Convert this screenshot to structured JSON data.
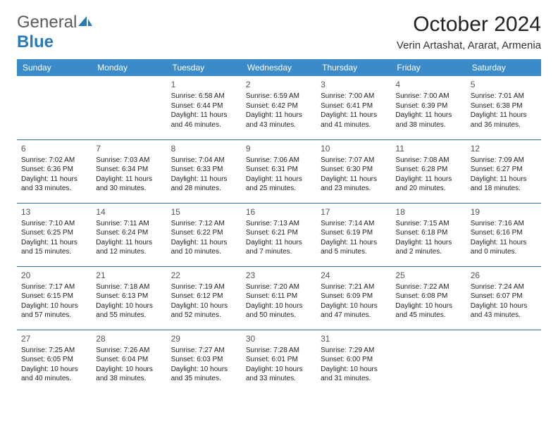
{
  "logo": {
    "text1": "General",
    "text2": "Blue"
  },
  "title": "October 2024",
  "location": "Verin Artashat, Ararat, Armenia",
  "colors": {
    "header_bg": "#3b8bc9",
    "header_text": "#ffffff",
    "row_border": "#3b6fa3",
    "logo_gray": "#5a5a5a",
    "logo_blue": "#2a7ab9"
  },
  "daynames": [
    "Sunday",
    "Monday",
    "Tuesday",
    "Wednesday",
    "Thursday",
    "Friday",
    "Saturday"
  ],
  "weeks": [
    [
      null,
      null,
      {
        "n": "1",
        "sr": "Sunrise: 6:58 AM",
        "ss": "Sunset: 6:44 PM",
        "d1": "Daylight: 11 hours",
        "d2": "and 46 minutes."
      },
      {
        "n": "2",
        "sr": "Sunrise: 6:59 AM",
        "ss": "Sunset: 6:42 PM",
        "d1": "Daylight: 11 hours",
        "d2": "and 43 minutes."
      },
      {
        "n": "3",
        "sr": "Sunrise: 7:00 AM",
        "ss": "Sunset: 6:41 PM",
        "d1": "Daylight: 11 hours",
        "d2": "and 41 minutes."
      },
      {
        "n": "4",
        "sr": "Sunrise: 7:00 AM",
        "ss": "Sunset: 6:39 PM",
        "d1": "Daylight: 11 hours",
        "d2": "and 38 minutes."
      },
      {
        "n": "5",
        "sr": "Sunrise: 7:01 AM",
        "ss": "Sunset: 6:38 PM",
        "d1": "Daylight: 11 hours",
        "d2": "and 36 minutes."
      }
    ],
    [
      {
        "n": "6",
        "sr": "Sunrise: 7:02 AM",
        "ss": "Sunset: 6:36 PM",
        "d1": "Daylight: 11 hours",
        "d2": "and 33 minutes."
      },
      {
        "n": "7",
        "sr": "Sunrise: 7:03 AM",
        "ss": "Sunset: 6:34 PM",
        "d1": "Daylight: 11 hours",
        "d2": "and 30 minutes."
      },
      {
        "n": "8",
        "sr": "Sunrise: 7:04 AM",
        "ss": "Sunset: 6:33 PM",
        "d1": "Daylight: 11 hours",
        "d2": "and 28 minutes."
      },
      {
        "n": "9",
        "sr": "Sunrise: 7:06 AM",
        "ss": "Sunset: 6:31 PM",
        "d1": "Daylight: 11 hours",
        "d2": "and 25 minutes."
      },
      {
        "n": "10",
        "sr": "Sunrise: 7:07 AM",
        "ss": "Sunset: 6:30 PM",
        "d1": "Daylight: 11 hours",
        "d2": "and 23 minutes."
      },
      {
        "n": "11",
        "sr": "Sunrise: 7:08 AM",
        "ss": "Sunset: 6:28 PM",
        "d1": "Daylight: 11 hours",
        "d2": "and 20 minutes."
      },
      {
        "n": "12",
        "sr": "Sunrise: 7:09 AM",
        "ss": "Sunset: 6:27 PM",
        "d1": "Daylight: 11 hours",
        "d2": "and 18 minutes."
      }
    ],
    [
      {
        "n": "13",
        "sr": "Sunrise: 7:10 AM",
        "ss": "Sunset: 6:25 PM",
        "d1": "Daylight: 11 hours",
        "d2": "and 15 minutes."
      },
      {
        "n": "14",
        "sr": "Sunrise: 7:11 AM",
        "ss": "Sunset: 6:24 PM",
        "d1": "Daylight: 11 hours",
        "d2": "and 12 minutes."
      },
      {
        "n": "15",
        "sr": "Sunrise: 7:12 AM",
        "ss": "Sunset: 6:22 PM",
        "d1": "Daylight: 11 hours",
        "d2": "and 10 minutes."
      },
      {
        "n": "16",
        "sr": "Sunrise: 7:13 AM",
        "ss": "Sunset: 6:21 PM",
        "d1": "Daylight: 11 hours",
        "d2": "and 7 minutes."
      },
      {
        "n": "17",
        "sr": "Sunrise: 7:14 AM",
        "ss": "Sunset: 6:19 PM",
        "d1": "Daylight: 11 hours",
        "d2": "and 5 minutes."
      },
      {
        "n": "18",
        "sr": "Sunrise: 7:15 AM",
        "ss": "Sunset: 6:18 PM",
        "d1": "Daylight: 11 hours",
        "d2": "and 2 minutes."
      },
      {
        "n": "19",
        "sr": "Sunrise: 7:16 AM",
        "ss": "Sunset: 6:16 PM",
        "d1": "Daylight: 11 hours",
        "d2": "and 0 minutes."
      }
    ],
    [
      {
        "n": "20",
        "sr": "Sunrise: 7:17 AM",
        "ss": "Sunset: 6:15 PM",
        "d1": "Daylight: 10 hours",
        "d2": "and 57 minutes."
      },
      {
        "n": "21",
        "sr": "Sunrise: 7:18 AM",
        "ss": "Sunset: 6:13 PM",
        "d1": "Daylight: 10 hours",
        "d2": "and 55 minutes."
      },
      {
        "n": "22",
        "sr": "Sunrise: 7:19 AM",
        "ss": "Sunset: 6:12 PM",
        "d1": "Daylight: 10 hours",
        "d2": "and 52 minutes."
      },
      {
        "n": "23",
        "sr": "Sunrise: 7:20 AM",
        "ss": "Sunset: 6:11 PM",
        "d1": "Daylight: 10 hours",
        "d2": "and 50 minutes."
      },
      {
        "n": "24",
        "sr": "Sunrise: 7:21 AM",
        "ss": "Sunset: 6:09 PM",
        "d1": "Daylight: 10 hours",
        "d2": "and 47 minutes."
      },
      {
        "n": "25",
        "sr": "Sunrise: 7:22 AM",
        "ss": "Sunset: 6:08 PM",
        "d1": "Daylight: 10 hours",
        "d2": "and 45 minutes."
      },
      {
        "n": "26",
        "sr": "Sunrise: 7:24 AM",
        "ss": "Sunset: 6:07 PM",
        "d1": "Daylight: 10 hours",
        "d2": "and 43 minutes."
      }
    ],
    [
      {
        "n": "27",
        "sr": "Sunrise: 7:25 AM",
        "ss": "Sunset: 6:05 PM",
        "d1": "Daylight: 10 hours",
        "d2": "and 40 minutes."
      },
      {
        "n": "28",
        "sr": "Sunrise: 7:26 AM",
        "ss": "Sunset: 6:04 PM",
        "d1": "Daylight: 10 hours",
        "d2": "and 38 minutes."
      },
      {
        "n": "29",
        "sr": "Sunrise: 7:27 AM",
        "ss": "Sunset: 6:03 PM",
        "d1": "Daylight: 10 hours",
        "d2": "and 35 minutes."
      },
      {
        "n": "30",
        "sr": "Sunrise: 7:28 AM",
        "ss": "Sunset: 6:01 PM",
        "d1": "Daylight: 10 hours",
        "d2": "and 33 minutes."
      },
      {
        "n": "31",
        "sr": "Sunrise: 7:29 AM",
        "ss": "Sunset: 6:00 PM",
        "d1": "Daylight: 10 hours",
        "d2": "and 31 minutes."
      },
      null,
      null
    ]
  ]
}
